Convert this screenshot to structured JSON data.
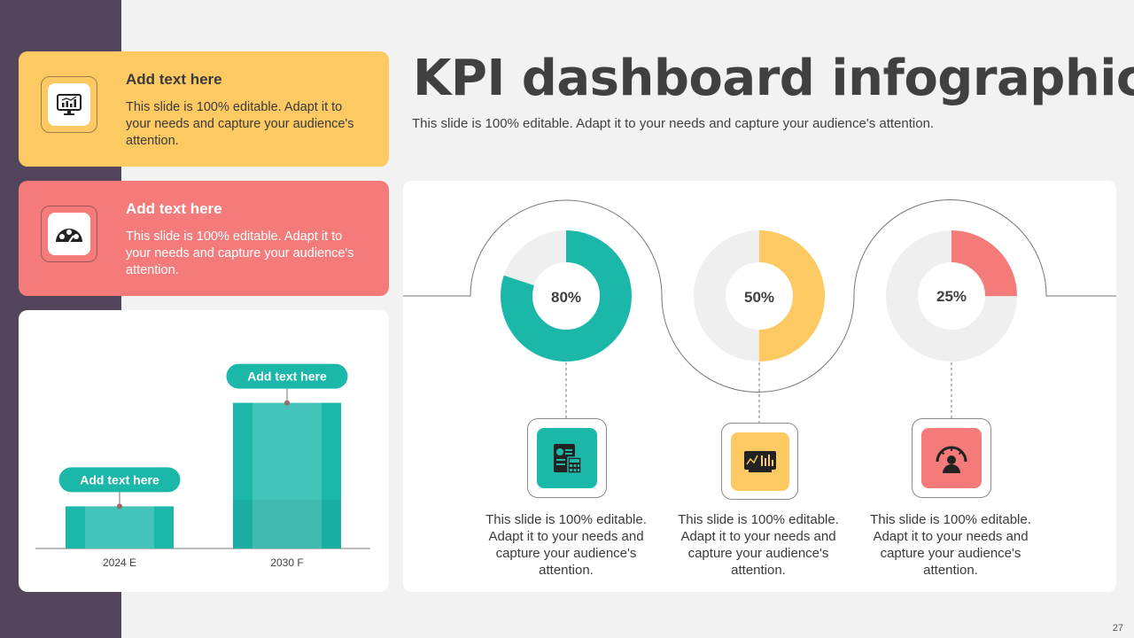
{
  "slide": {
    "title": "KPI dashboard infographics",
    "subtitle": "This slide is 100% editable. Adapt it to your needs and capture your audience's attention.",
    "page_number": "27"
  },
  "cards": [
    {
      "title": "Add text here",
      "body": "This slide is 100% editable. Adapt it to your needs and capture your audience's attention.",
      "icon": "monitor-chart-icon",
      "color": "#fdc962"
    },
    {
      "title": "Add text here",
      "body": "This slide is 100% editable. Adapt it to your needs and capture your audience's attention.",
      "icon": "speedometer-faces-icon",
      "color": "#f57b7b"
    }
  ],
  "kpis": [
    {
      "value": "80%",
      "percent": 80,
      "color": "#1bb8aa",
      "icon": "report-calculator-icon",
      "text": "This slide is 100% editable. Adapt it to your needs and capture your audience's attention."
    },
    {
      "value": "50%",
      "percent": 50,
      "color": "#fdc962",
      "icon": "chart-board-icon",
      "text": "This slide is 100% editable. Adapt it to your needs and capture your audience's attention."
    },
    {
      "value": "25%",
      "percent": 25,
      "color": "#f57b7b",
      "icon": "gauge-person-icon",
      "text": "This slide is 100% editable. Adapt it to your needs and capture your audience's attention."
    }
  ],
  "chart_data": {
    "type": "bar",
    "categories": [
      "2024 E",
      "2030 F"
    ],
    "values": [
      55,
      190
    ],
    "ylim": [
      0,
      230
    ],
    "bar_labels": [
      "Add text here",
      "Add text here"
    ],
    "color": "#1bb8aa",
    "grid": false
  }
}
